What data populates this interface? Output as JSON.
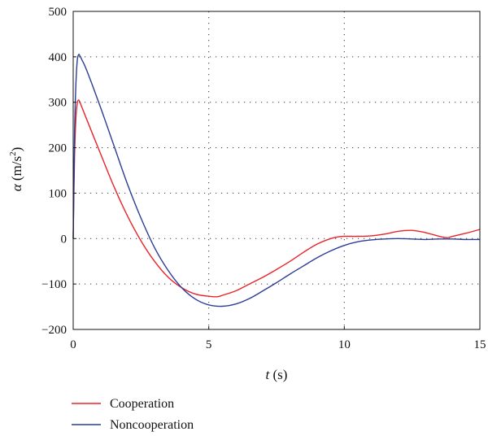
{
  "chart_data": {
    "type": "line",
    "title": "",
    "xlabel": {
      "symbol": "t",
      "unit": " (s)"
    },
    "ylabel": {
      "symbol": "α",
      "unit_before": " (m/s",
      "unit_sup": "2",
      "unit_after": ")"
    },
    "xlim": [
      0,
      15
    ],
    "ylim": [
      -200,
      500
    ],
    "xticks": [
      0,
      5,
      10,
      15
    ],
    "yticks": [
      -200,
      -100,
      0,
      100,
      200,
      300,
      400,
      500
    ],
    "grid": "dotted",
    "legend_position": "bottom-left",
    "series": [
      {
        "name": "Cooperation",
        "color": "#e8242a",
        "x": [
          0,
          0.05,
          0.1,
          0.15,
          0.2,
          0.25,
          0.3,
          0.5,
          1.0,
          1.5,
          2.0,
          2.5,
          3.0,
          3.5,
          4.0,
          4.5,
          5.0,
          5.3,
          5.5,
          6.0,
          6.5,
          7.0,
          7.5,
          8.0,
          8.5,
          9.0,
          9.5,
          9.8,
          10.0,
          10.5,
          11.0,
          11.5,
          12.0,
          12.5,
          13.0,
          13.5,
          13.8,
          14.0,
          14.5,
          15.0
        ],
        "y": [
          0,
          180,
          265,
          298,
          305,
          300,
          292,
          262,
          188,
          115,
          50,
          -5,
          -50,
          -85,
          -108,
          -122,
          -127,
          -128,
          -125,
          -115,
          -100,
          -85,
          -68,
          -50,
          -30,
          -12,
          0,
          4,
          5,
          5,
          6,
          10,
          16,
          18,
          13,
          5,
          2,
          5,
          12,
          20
        ]
      },
      {
        "name": "Noncooperation",
        "color": "#2c3d96",
        "x": [
          0,
          0.05,
          0.1,
          0.15,
          0.2,
          0.25,
          0.3,
          0.5,
          1.0,
          1.5,
          2.0,
          2.5,
          3.0,
          3.5,
          4.0,
          4.5,
          5.0,
          5.5,
          6.0,
          6.5,
          7.0,
          7.5,
          8.0,
          8.5,
          9.0,
          9.5,
          10.0,
          10.5,
          11.0,
          11.5,
          12.0,
          12.5,
          13.0,
          13.5,
          14.0,
          14.5,
          15.0
        ],
        "y": [
          0,
          230,
          340,
          392,
          405,
          402,
          396,
          370,
          290,
          205,
          120,
          45,
          -20,
          -70,
          -108,
          -133,
          -146,
          -149,
          -144,
          -132,
          -115,
          -97,
          -78,
          -60,
          -42,
          -27,
          -15,
          -7,
          -3,
          -1,
          0,
          -1,
          -2,
          -1,
          -1,
          -2,
          -2
        ]
      }
    ]
  }
}
